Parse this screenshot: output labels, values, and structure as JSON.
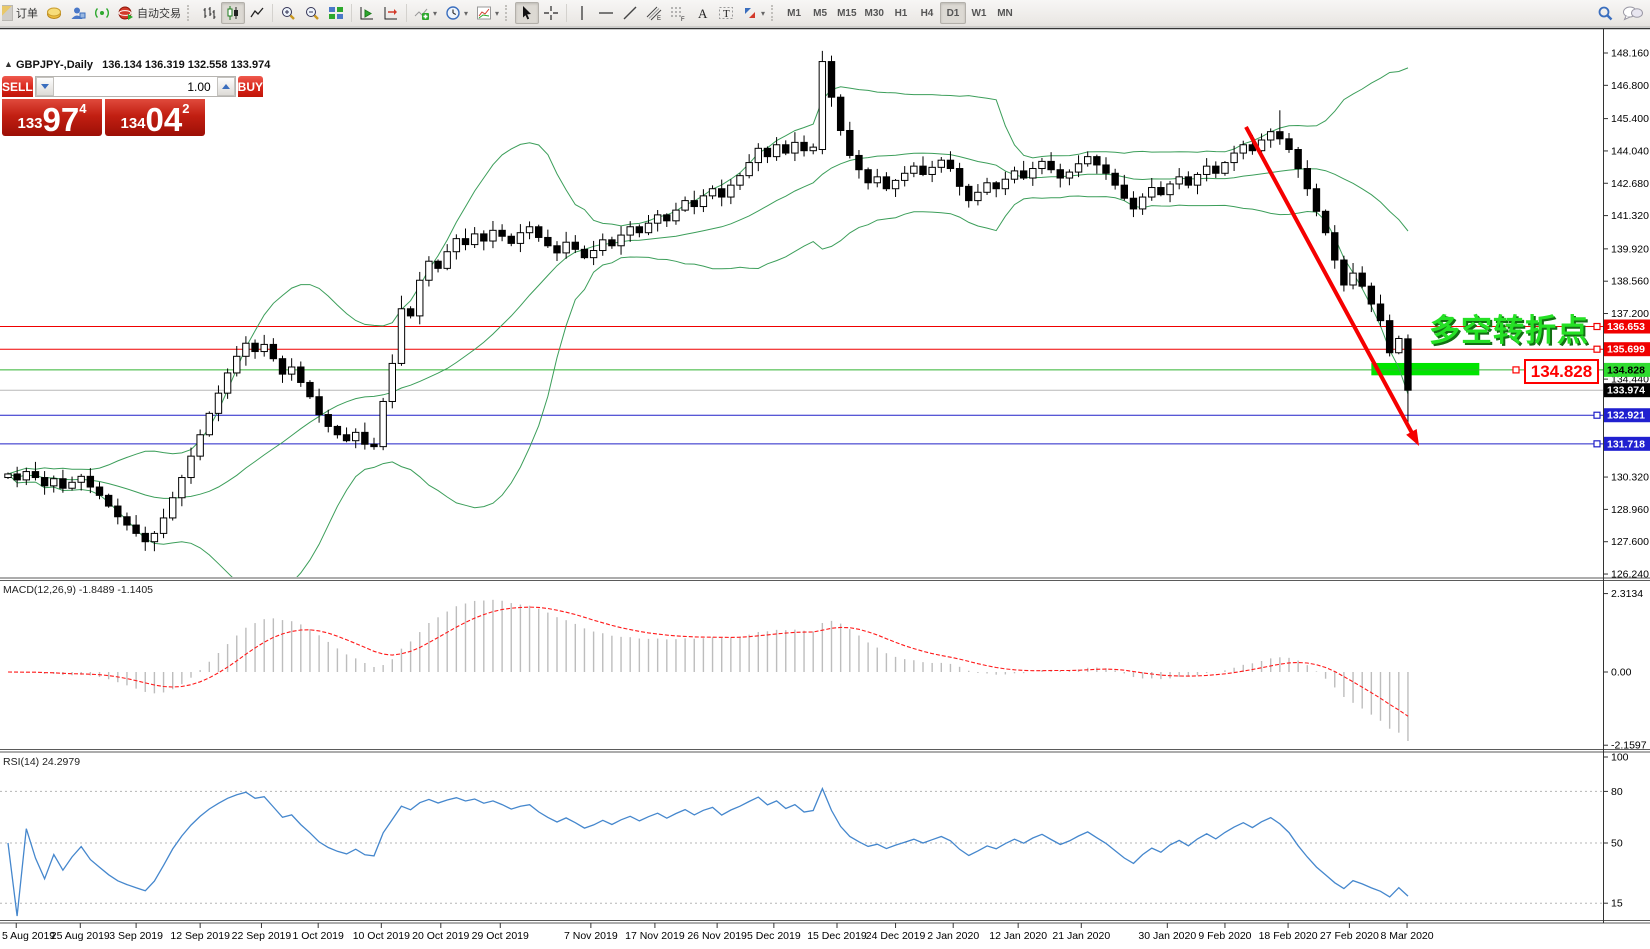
{
  "toolbar": {
    "new_order_label": "订单",
    "autotrading_label": "自动交易",
    "timeframes": {
      "items": [
        "M1",
        "M5",
        "M15",
        "M30",
        "H1",
        "H4",
        "D1",
        "W1",
        "MN"
      ],
      "active": "D1"
    }
  },
  "chart": {
    "title": {
      "symbol": "GBPJPY-,Daily",
      "ohlc": "136.134 136.319 132.558 133.974"
    },
    "trade_widget": {
      "sell_label": "SELL",
      "buy_label": "BUY",
      "volume": "1.00",
      "sell_price": {
        "small": "133",
        "big": "97",
        "sup": "4"
      },
      "buy_price": {
        "small": "134",
        "big": "04",
        "sup": "2"
      }
    },
    "annotation_text": "多空转折点",
    "price_label_box": "134.828"
  },
  "chart_data": {
    "type": "candlestick",
    "symbol": "GBPJPY-",
    "timeframe": "Daily",
    "current_bar_ohlc": [
      136.134,
      136.319,
      132.558,
      133.974
    ],
    "candles": {
      "first_open": 130.3,
      "closes": [
        130.45,
        130.2,
        130.55,
        130.3,
        129.95,
        130.25,
        129.85,
        130.1,
        130.35,
        129.9,
        129.55,
        129.1,
        128.65,
        128.3,
        127.95,
        127.6,
        127.95,
        128.6,
        129.45,
        130.3,
        131.2,
        132.1,
        133.0,
        133.85,
        134.7,
        135.4,
        135.95,
        135.6,
        135.9,
        135.3,
        134.65,
        134.95,
        134.3,
        133.7,
        132.95,
        132.45,
        132.1,
        131.85,
        132.2,
        131.7,
        131.6,
        133.5,
        135.1,
        137.4,
        137.1,
        138.6,
        139.4,
        139.1,
        139.8,
        140.35,
        140.1,
        140.55,
        140.25,
        140.7,
        140.45,
        140.15,
        140.6,
        140.85,
        140.4,
        140.05,
        139.75,
        140.2,
        139.9,
        139.55,
        139.85,
        140.3,
        140.05,
        140.5,
        140.85,
        140.6,
        141.0,
        141.35,
        141.1,
        141.55,
        141.95,
        141.7,
        142.15,
        142.45,
        142.1,
        142.6,
        143.0,
        143.55,
        144.15,
        143.8,
        144.3,
        143.95,
        144.4,
        144.05,
        144.2,
        147.8,
        146.3,
        144.9,
        143.85,
        143.25,
        142.7,
        142.95,
        142.45,
        142.8,
        143.1,
        143.4,
        143.05,
        143.35,
        143.65,
        143.3,
        142.55,
        141.95,
        142.3,
        142.7,
        142.45,
        142.85,
        143.2,
        142.9,
        143.3,
        143.6,
        143.25,
        142.9,
        143.15,
        143.5,
        143.8,
        143.45,
        143.1,
        142.6,
        142.05,
        141.6,
        142.1,
        142.5,
        142.2,
        142.65,
        142.95,
        142.6,
        143.05,
        143.4,
        143.1,
        143.55,
        143.95,
        144.3,
        144.05,
        144.5,
        144.85,
        144.55,
        144.1,
        143.3,
        142.45,
        141.5,
        140.6,
        139.45,
        138.4,
        138.9,
        138.35,
        137.6,
        136.9,
        135.55,
        136.15,
        133.974
      ],
      "overrides": {
        "16": [
          127.6,
          128.05,
          127.2,
          127.95
        ],
        "41": [
          131.6,
          133.65,
          131.45,
          133.5
        ],
        "43": [
          135.1,
          137.95,
          135.0,
          137.4
        ],
        "89": [
          144.1,
          148.25,
          143.9,
          147.8
        ],
        "90": [
          147.8,
          148.05,
          145.9,
          146.3
        ],
        "139": [
          144.85,
          145.75,
          144.3,
          144.55
        ],
        "153": [
          136.134,
          136.319,
          132.558,
          133.974
        ]
      }
    },
    "bollinger": {
      "period": 20,
      "deviation": 2,
      "color": "#3c9e5a"
    },
    "levels": [
      {
        "price": 136.653,
        "color": "#f00000"
      },
      {
        "price": 135.699,
        "color": "#f00000"
      },
      {
        "price": 134.828,
        "color": "#30b330"
      },
      {
        "price": 133.974,
        "color": "#b8b8b8"
      },
      {
        "price": 132.921,
        "color": "#2020c8"
      },
      {
        "price": 131.718,
        "color": "#2020c8"
      }
    ],
    "handles": [
      {
        "price": 136.653,
        "color": "#f00000"
      },
      {
        "price": 135.699,
        "color": "#f00000"
      },
      {
        "price": 132.921,
        "color": "#2020c8"
      },
      {
        "price": 131.718,
        "color": "#2020c8"
      }
    ],
    "axis": {
      "price_ticks": [
        "148.160",
        "146.800",
        "145.400",
        "144.040",
        "142.680",
        "141.320",
        "139.920",
        "138.560",
        "137.200",
        "134.440",
        "130.320",
        "128.960",
        "127.600",
        "126.240"
      ],
      "tags": [
        {
          "text": "136.653",
          "price": 136.653,
          "bg": "#f00000",
          "fg": "#ffffff"
        },
        {
          "text": "135.699",
          "price": 135.699,
          "bg": "#f00000",
          "fg": "#ffffff"
        },
        {
          "text": "134.828",
          "price": 134.828,
          "bg": "#30dc30",
          "fg": "#000000"
        },
        {
          "text": "133.974",
          "price": 133.974,
          "bg": "#000000",
          "fg": "#ffffff"
        },
        {
          "text": "132.921",
          "price": 132.921,
          "bg": "#2020d0",
          "fg": "#ffffff"
        },
        {
          "text": "131.718",
          "price": 131.718,
          "bg": "#2020d0",
          "fg": "#ffffff"
        }
      ]
    },
    "date_ticks": [
      {
        "label": "5 Aug 2019",
        "bar": 0.9
      },
      {
        "label": "25 Aug 2019",
        "bar": 7.9
      },
      {
        "label": "3 Sep 2019",
        "bar": 14.0
      },
      {
        "label": "12 Sep 2019",
        "bar": 21.0
      },
      {
        "label": "22 Sep 2019",
        "bar": 27.7
      },
      {
        "label": "1 Oct 2019",
        "bar": 33.9
      },
      {
        "label": "10 Oct 2019",
        "bar": 40.8
      },
      {
        "label": "20 Oct 2019",
        "bar": 47.3
      },
      {
        "label": "29 Oct 2019",
        "bar": 53.8
      },
      {
        "label": "7 Nov 2019",
        "bar": 63.7
      },
      {
        "label": "17 Nov 2019",
        "bar": 70.7
      },
      {
        "label": "26 Nov 2019",
        "bar": 77.5
      },
      {
        "label": "5 Dec 2019",
        "bar": 83.7
      },
      {
        "label": "15 Dec 2019",
        "bar": 90.6
      },
      {
        "label": "24 Dec 2019",
        "bar": 97.0
      },
      {
        "label": "2 Jan 2020",
        "bar": 103.3
      },
      {
        "label": "12 Jan 2020",
        "bar": 110.4
      },
      {
        "label": "21 Jan 2020",
        "bar": 117.3
      },
      {
        "label": "30 Jan 2020",
        "bar": 126.7
      },
      {
        "label": "9 Feb 2020",
        "bar": 133.0
      },
      {
        "label": "18 Feb 2020",
        "bar": 139.9
      },
      {
        "label": "27 Feb 2020",
        "bar": 146.6
      },
      {
        "label": "8 Mar 2020",
        "bar": 152.9
      }
    ],
    "macd": {
      "label_text": "MACD(12,26,9) -1.8489 -1.1405",
      "main_value": -1.8489,
      "signal_value": -1.1405,
      "axis": [
        "2.3134",
        "0.00",
        "-2.1597"
      ],
      "histogram_color": "#bdbdbd",
      "signal_color": "#ff1a1a"
    },
    "rsi": {
      "label_text": "RSI(14) 24.2979",
      "value": 24.2979,
      "levels": [
        80,
        50,
        15
      ],
      "axis": [
        "100",
        "80",
        "50",
        "15"
      ],
      "line_color": "#4587cd"
    },
    "annotations": {
      "arrow": {
        "bar_from": 135.3,
        "price_from": 145.05,
        "bar_to": 153.9,
        "price_to": 131.85,
        "color": "#f50000"
      },
      "highlight_rect": {
        "bar_from": 149.0,
        "bar_to": 160.8,
        "price_top": 135.12,
        "price_bottom": 134.6,
        "color": "#00e400"
      },
      "price_box": {
        "price": 134.828,
        "color": "#ff0000"
      }
    }
  }
}
